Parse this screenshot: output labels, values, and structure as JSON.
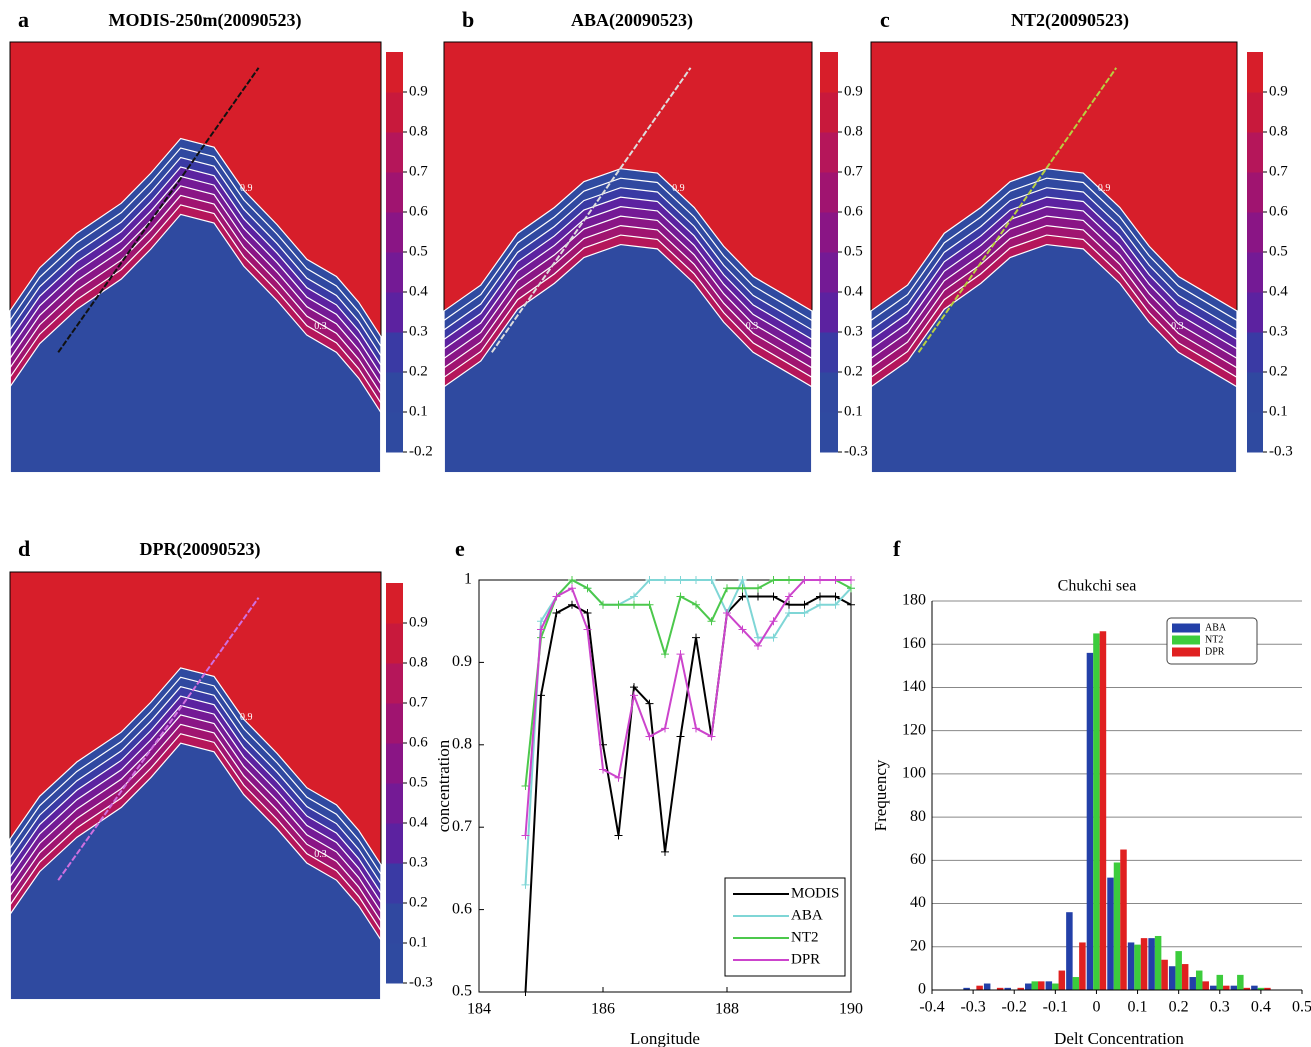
{
  "chart_data": [
    {
      "type": "contour",
      "panel": "a",
      "title": "MODIS-250m(20090523)",
      "colorbar_ticks": [
        0.9,
        0.8,
        0.7,
        0.6,
        0.5,
        0.4,
        0.3,
        0.2,
        0.1,
        -0.2
      ],
      "contour_levels": [
        0.9,
        0.3
      ]
    },
    {
      "type": "contour",
      "panel": "b",
      "title": "ABA(20090523)",
      "colorbar_ticks": [
        0.9,
        0.8,
        0.7,
        0.6,
        0.5,
        0.4,
        0.3,
        0.2,
        0.1,
        -0.3
      ],
      "contour_levels": [
        0.9,
        0.3
      ]
    },
    {
      "type": "contour",
      "panel": "c",
      "title": "NT2(20090523)",
      "colorbar_ticks": [
        0.9,
        0.8,
        0.7,
        0.6,
        0.5,
        0.4,
        0.3,
        0.2,
        0.1,
        -0.3
      ],
      "contour_levels": [
        0.9,
        0.3
      ]
    },
    {
      "type": "contour",
      "panel": "d",
      "title": "DPR(20090523)",
      "colorbar_ticks": [
        0.9,
        0.8,
        0.7,
        0.6,
        0.5,
        0.4,
        0.3,
        0.2,
        0.1,
        -0.3
      ],
      "contour_levels": [
        0.9,
        0.3
      ]
    },
    {
      "type": "line",
      "panel": "e",
      "x": [
        184.75,
        185.0,
        185.25,
        185.5,
        185.75,
        186.0,
        186.25,
        186.5,
        186.75,
        187.0,
        187.25,
        187.5,
        187.75,
        188.0,
        188.25,
        188.5,
        188.75,
        189.0,
        189.25,
        189.5,
        189.75,
        190.0
      ],
      "series": [
        {
          "name": "MODIS",
          "color": "#000000",
          "values": [
            0.5,
            0.86,
            0.96,
            0.97,
            0.96,
            0.8,
            0.69,
            0.87,
            0.85,
            0.67,
            0.81,
            0.93,
            0.81,
            0.96,
            0.98,
            0.98,
            0.98,
            0.97,
            0.97,
            0.98,
            0.98,
            0.97
          ]
        },
        {
          "name": "ABA",
          "color": "#7fd6d6",
          "values": [
            0.63,
            0.95,
            0.98,
            1.0,
            0.99,
            0.97,
            0.97,
            0.98,
            1.0,
            1.0,
            1.0,
            1.0,
            1.0,
            0.96,
            1.0,
            0.93,
            0.93,
            0.96,
            0.96,
            0.97,
            0.97,
            0.99
          ]
        },
        {
          "name": "NT2",
          "color": "#4cc84c",
          "values": [
            0.75,
            0.93,
            0.98,
            1.0,
            0.99,
            0.97,
            0.97,
            0.97,
            0.97,
            0.91,
            0.98,
            0.97,
            0.95,
            0.99,
            0.99,
            0.99,
            1.0,
            1.0,
            1.0,
            1.0,
            1.0,
            0.99
          ]
        },
        {
          "name": "DPR",
          "color": "#cc44cc",
          "values": [
            0.69,
            0.94,
            0.98,
            0.99,
            0.94,
            0.77,
            0.76,
            0.86,
            0.81,
            0.82,
            0.91,
            0.82,
            0.81,
            0.96,
            0.94,
            0.92,
            0.95,
            0.98,
            1.0,
            1.0,
            1.0,
            1.0
          ]
        }
      ],
      "xlim": [
        184,
        190
      ],
      "xticks": [
        184,
        186,
        188,
        190
      ],
      "ylim": [
        0.5,
        1
      ],
      "yticks": [
        0.5,
        0.6,
        0.7,
        0.8,
        0.9,
        1
      ],
      "xlabel": "Longitude",
      "ylabel": "concentration",
      "legend": "lower right"
    },
    {
      "type": "bar",
      "panel": "f",
      "title": "Chukchi sea",
      "x": [
        -0.3,
        -0.25,
        -0.2,
        -0.15,
        -0.1,
        -0.05,
        0,
        0.05,
        0.1,
        0.15,
        0.2,
        0.25,
        0.3,
        0.35,
        0.4
      ],
      "series": [
        {
          "name": "ABA",
          "color": "#2340a8",
          "values": [
            1,
            3,
            1,
            3,
            4,
            36,
            156,
            52,
            22,
            24,
            11,
            6,
            2,
            2,
            2
          ]
        },
        {
          "name": "NT2",
          "color": "#3ccc3c",
          "values": [
            0,
            0,
            0,
            4,
            3,
            6,
            165,
            59,
            21,
            25,
            18,
            9,
            7,
            7,
            1
          ]
        },
        {
          "name": "DPR",
          "color": "#e02020",
          "values": [
            2,
            1,
            1,
            4,
            9,
            22,
            166,
            65,
            24,
            14,
            12,
            4,
            2,
            1,
            1
          ]
        }
      ],
      "xlim": [
        -0.4,
        0.5
      ],
      "xticks": [
        -0.4,
        -0.3,
        -0.2,
        -0.1,
        0,
        0.1,
        0.2,
        0.3,
        0.4,
        0.5
      ],
      "ylim": [
        0,
        180
      ],
      "yticks": [
        0,
        20,
        40,
        60,
        80,
        100,
        120,
        140,
        160,
        180
      ],
      "xlabel": "Delt Concentration",
      "ylabel": "Frequency",
      "grid": true,
      "legend": "upper right"
    }
  ]
}
